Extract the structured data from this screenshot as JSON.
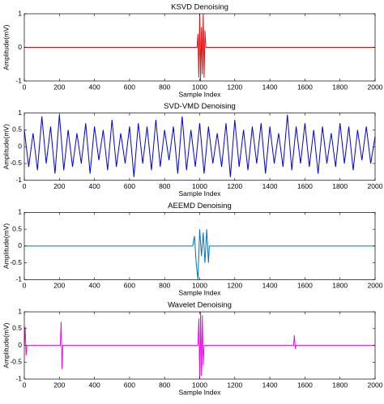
{
  "chart_data": [
    {
      "type": "line",
      "title": "KSVD Denoising",
      "x_label": "Sample Index",
      "y_label": "Amplitude(mV)",
      "color": "#e01010",
      "x": [
        0,
        985,
        990,
        995,
        1000,
        1005,
        1010,
        1015,
        1020,
        1025,
        1030,
        1035,
        2000
      ],
      "values": [
        0,
        0,
        0.4,
        -0.9,
        1,
        -1,
        0.6,
        -0.8,
        1,
        -0.9,
        0.5,
        0,
        0
      ],
      "xlim": [
        0,
        2000
      ],
      "xticks": [
        0,
        200,
        400,
        600,
        800,
        1000,
        1200,
        1400,
        1600,
        1800,
        2000
      ],
      "ylim": [
        -1,
        1
      ],
      "yticks": [
        -1,
        0,
        1
      ]
    },
    {
      "type": "line",
      "title": "SVD-VMD Denoising",
      "x_label": "Sample Index",
      "y_label": "Amplitude(mV)",
      "color": "#0000e0",
      "x": [
        0,
        25,
        50,
        75,
        100,
        125,
        150,
        175,
        200,
        225,
        250,
        275,
        300,
        325,
        350,
        375,
        400,
        425,
        450,
        475,
        500,
        525,
        550,
        575,
        600,
        625,
        650,
        675,
        700,
        725,
        750,
        775,
        800,
        825,
        850,
        875,
        900,
        925,
        950,
        975,
        1000,
        1025,
        1050,
        1075,
        1100,
        1125,
        1150,
        1175,
        1200,
        1225,
        1250,
        1275,
        1300,
        1325,
        1350,
        1375,
        1400,
        1425,
        1450,
        1475,
        1500,
        1525,
        1550,
        1575,
        1600,
        1625,
        1650,
        1675,
        1700,
        1725,
        1750,
        1775,
        1800,
        1825,
        1850,
        1875,
        1900,
        1925,
        1950,
        1975,
        2000
      ],
      "values": [
        0.5,
        -0.6,
        0.4,
        -0.7,
        0.9,
        -0.5,
        0.6,
        -0.8,
        0.95,
        -0.7,
        0.5,
        -0.6,
        0.4,
        -0.5,
        0.7,
        -0.8,
        0.6,
        -0.4,
        0.5,
        -0.7,
        0.8,
        -0.6,
        0.4,
        -0.5,
        0.6,
        -0.9,
        0.7,
        -0.5,
        0.6,
        -0.7,
        0.8,
        -0.6,
        0.5,
        -0.4,
        0.6,
        -0.8,
        0.9,
        -0.7,
        0.5,
        -0.6,
        0.7,
        -0.8,
        0.6,
        -0.5,
        0.4,
        -0.6,
        0.7,
        -0.9,
        0.8,
        -0.6,
        0.5,
        -0.7,
        0.6,
        -0.5,
        0.7,
        -0.8,
        0.6,
        -0.5,
        0.4,
        -0.6,
        0.95,
        -0.7,
        0.6,
        -0.5,
        0.7,
        -0.6,
        0.5,
        -0.8,
        0.6,
        -0.5,
        0.4,
        -0.6,
        0.7,
        -0.5,
        0.6,
        -0.7,
        0.5,
        -0.4,
        0.6,
        -0.5,
        0.3
      ],
      "xlim": [
        0,
        2000
      ],
      "xticks": [
        0,
        200,
        400,
        600,
        800,
        1000,
        1200,
        1400,
        1600,
        1800,
        2000
      ],
      "ylim": [
        -1,
        1
      ],
      "yticks": [
        -1,
        -0.5,
        0,
        0.5,
        1
      ]
    },
    {
      "type": "line",
      "title": "AEEMD Denoising",
      "x_label": "Sample Index",
      "y_label": "Amplitude(mV)",
      "color": "#0072bd",
      "x": [
        0,
        960,
        970,
        980,
        990,
        1000,
        1010,
        1020,
        1030,
        1040,
        1050,
        1055,
        2000
      ],
      "values": [
        0,
        0,
        0.3,
        -0.5,
        -1,
        0.5,
        -0.3,
        0.4,
        -0.5,
        0.5,
        -0.5,
        0,
        0
      ],
      "xlim": [
        0,
        2000
      ],
      "xticks": [
        0,
        200,
        400,
        600,
        800,
        1000,
        1200,
        1400,
        1600,
        1800,
        2000
      ],
      "ylim": [
        -1,
        1
      ],
      "yticks": [
        -1,
        -0.5,
        0,
        0.5,
        1
      ]
    },
    {
      "type": "line",
      "title": "Wavelet Denoising",
      "x_label": "Sample Index",
      "y_label": "Amplitude(mV)",
      "color": "#e010e0",
      "x": [
        0,
        5,
        10,
        15,
        205,
        210,
        215,
        220,
        990,
        995,
        1000,
        1005,
        1010,
        1015,
        1020,
        1025,
        1535,
        1540,
        1545,
        1550,
        2000
      ],
      "values": [
        0,
        0.55,
        -0.3,
        0,
        0,
        0.7,
        -0.7,
        0,
        0,
        0.8,
        -1,
        1,
        -0.9,
        0.9,
        -0.6,
        0,
        0,
        0.3,
        -0.1,
        0,
        0
      ],
      "xlim": [
        0,
        2000
      ],
      "xticks": [
        0,
        200,
        400,
        600,
        800,
        1000,
        1200,
        1400,
        1600,
        1800,
        2000
      ],
      "ylim": [
        -1,
        1
      ],
      "yticks": [
        -1,
        -0.5,
        0,
        0.5,
        1
      ]
    }
  ]
}
